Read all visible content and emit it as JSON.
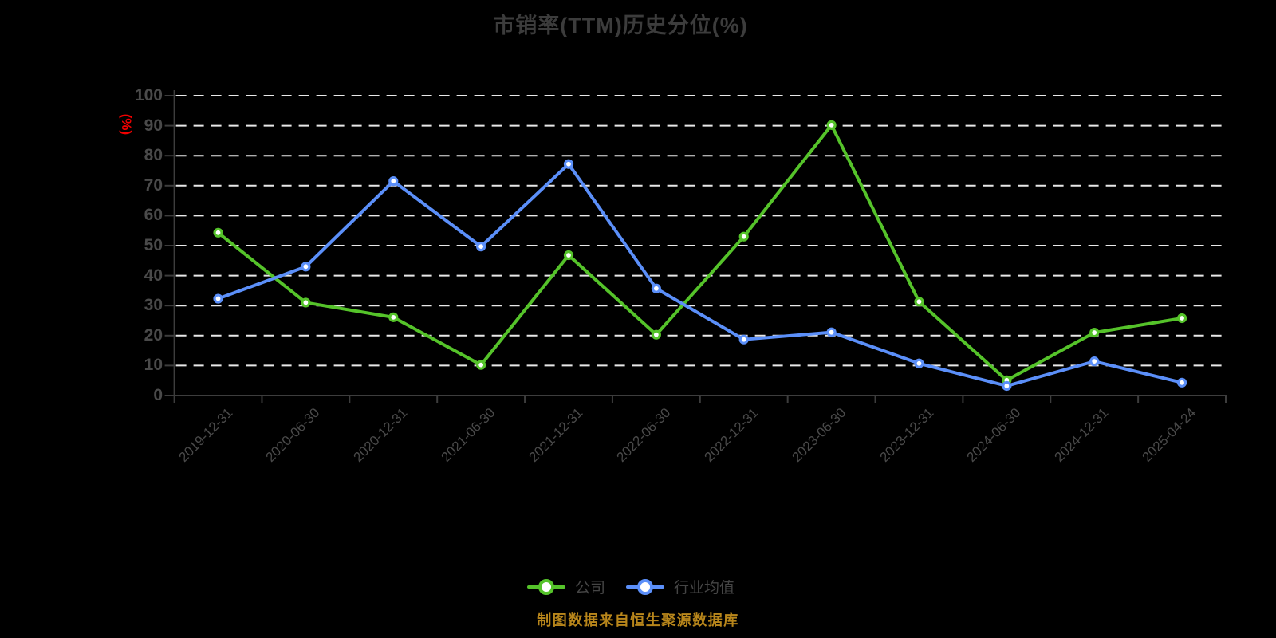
{
  "title": "市销率(TTM)历史分位(%)",
  "y_axis": {
    "unit_label": "(%)",
    "tick_values": [
      0,
      10,
      20,
      30,
      40,
      50,
      60,
      70,
      80,
      90,
      100
    ],
    "label_color": "#f20000"
  },
  "footer": {
    "source_note": "制图数据来自恒生聚源数据库"
  },
  "colors": {
    "background": "#000000",
    "title_text": "#3c3c3c",
    "axis_line": "#3d3d3d",
    "tick_label": "#4a4a4a",
    "gridline": "#e8e8e8",
    "company_series": "#55c32a",
    "industry_series": "#5b8ff9",
    "marker_fill": "#ffffff",
    "footer_text": "#b8861b"
  },
  "chart_data": {
    "type": "line",
    "title": "市销率(TTM)历史分位(%)",
    "ylabel": "(%)",
    "ylim": [
      0,
      100
    ],
    "y_interval": 10,
    "grid": "horizontal-dashed",
    "legend_position": "bottom",
    "categories": [
      "2019-12-31",
      "2020-06-30",
      "2020-12-31",
      "2021-06-30",
      "2021-12-31",
      "2022-06-30",
      "2022-12-31",
      "2023-06-30",
      "2023-12-31",
      "2024-06-30",
      "2024-12-31",
      "2025-04-24"
    ],
    "series": [
      {
        "name": "公司",
        "color": "#55c32a",
        "values": [
          54.3,
          31.0,
          26.1,
          10.2,
          46.8,
          20.3,
          53.0,
          90.2,
          31.3,
          5.1,
          21.0,
          25.8
        ]
      },
      {
        "name": "行业均值",
        "color": "#5b8ff9",
        "values": [
          32.3,
          43.0,
          71.5,
          49.7,
          77.2,
          35.7,
          18.7,
          21.1,
          10.7,
          3.2,
          11.4,
          4.3
        ]
      }
    ]
  }
}
